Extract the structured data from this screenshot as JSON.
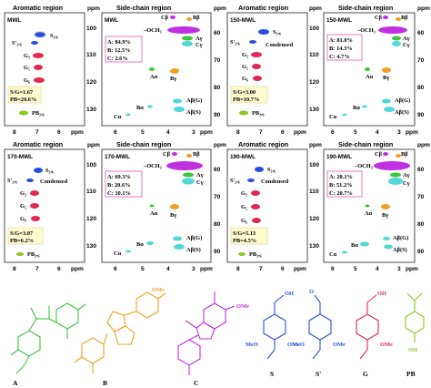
{
  "figure": {
    "region_labels": {
      "aromatic": "Aromatic region",
      "side_chain": "Side-chain region",
      "ppm": "ppm"
    },
    "ticks": {
      "aromatic_y": [
        "100",
        "110",
        "120",
        "130"
      ],
      "side_chain_y": [
        "60",
        "70",
        "80",
        "90"
      ],
      "aromatic_x": [
        "8",
        "7",
        "6"
      ],
      "side_chain_x": [
        "6",
        "5",
        "4",
        "3"
      ]
    },
    "peak_labels": {
      "s26": "S₂,₆",
      "s26p": "S'₂,₆",
      "g2": "G₂",
      "g5": "G₅",
      "g6": "G₆",
      "pb26": "PB₂,₆",
      "cb": "Cβ",
      "bb": "Bβ",
      "ocH3": "–OCH₃",
      "ay": "Aγ",
      "cy": "Cγ",
      "condensed": "Condensed",
      "aa": "Aα",
      "bg": "Bγ",
      "aba_g": "Aβ(G)",
      "aba_s": "Aβ(S)",
      "ba": "Bα",
      "ca": "Cα"
    },
    "panels": [
      {
        "sample": "MWL",
        "a": "A: 84.9%",
        "b": "B: 12.5%",
        "c": "C: 2.6%",
        "sg": "S/G=1.67",
        "pb": "PB=20.6%"
      },
      {
        "sample": "150-MWL",
        "a": "A: 81.0%",
        "b": "B: 14.3%",
        "c": "C: 4.7%",
        "sg": "S/G=3.00",
        "pb": "PB=10.7%"
      },
      {
        "sample": "170-MWL",
        "a": "A: 69.3%",
        "b": "B: 20.6%",
        "c": "C: 10.1%",
        "sg": "S/G=3.07",
        "pb": "PB=6.2%"
      },
      {
        "sample": "190-MWL",
        "a": "A: 28.1%",
        "b": "B: 51.2%",
        "c": "C: 20.7%",
        "sg": "S/G=5.13",
        "pb": "PB=4.5%"
      }
    ],
    "structures": [
      {
        "label": "A",
        "color": "#3cc63c"
      },
      {
        "label": "B",
        "color": "#f0a020"
      },
      {
        "label": "C",
        "color": "#c030e0"
      },
      {
        "label": "S",
        "color": "#2a4ed8"
      },
      {
        "label": "S'",
        "color": "#2a4ed8"
      },
      {
        "label": "G",
        "color": "#e02850"
      },
      {
        "label": "PB",
        "color": "#88c820"
      }
    ],
    "structure_text": {
      "oh": "OH",
      "ome": "OMe",
      "meo": "MeO",
      "o": "O"
    }
  }
}
